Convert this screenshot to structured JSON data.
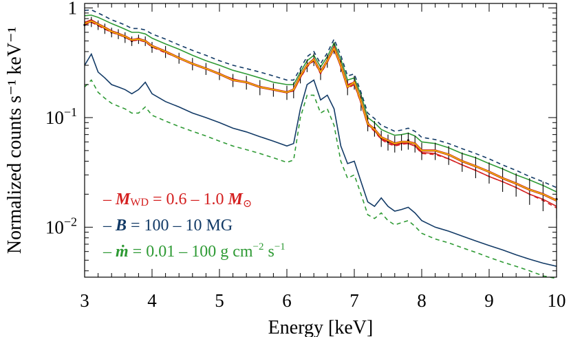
{
  "chart_data": {
    "type": "line",
    "title": "",
    "xlabel": "Energy [keV]",
    "ylabel": "Normalized counts s⁻¹ keV⁻¹",
    "xlim": [
      3,
      10
    ],
    "ylim": [
      0.0035,
      1.1
    ],
    "yscale": "log",
    "grid": false,
    "legend_position": "bottom-left",
    "x_ticks": [
      "3",
      "4",
      "5",
      "6",
      "7",
      "8",
      "9",
      "10"
    ],
    "y_tick_labels": [
      {
        "value": 1,
        "base": "1",
        "exp": ""
      },
      {
        "value": 0.1,
        "base": "10",
        "exp": "−1"
      },
      {
        "value": 0.01,
        "base": "10",
        "exp": "−2"
      }
    ],
    "legend": [
      {
        "id": "mass",
        "color": "#d42020",
        "dash": "–",
        "symbol": "M",
        "sub": "WD",
        "text": " = 0.6 – 1.0 ",
        "symbol2": "M",
        "sub2": "⊙",
        "sup": ""
      },
      {
        "id": "field",
        "color": "#123a66",
        "dash": "–",
        "symbol": "B",
        "sub": "",
        "text": " = 100 – 10 MG",
        "symbol2": "",
        "sub2": "",
        "sup": ""
      },
      {
        "id": "rate",
        "color": "#2e9a34",
        "dash": "–",
        "symbol": "ṁ",
        "sub": "",
        "text": " = 0.01 – 100 g cm",
        "sup": "−2",
        "text2": " s",
        "sup2": "−1"
      }
    ],
    "x": [
      3.0,
      3.1,
      3.2,
      3.3,
      3.4,
      3.5,
      3.6,
      3.7,
      3.8,
      3.9,
      4.0,
      4.2,
      4.4,
      4.6,
      4.8,
      5.0,
      5.2,
      5.4,
      5.6,
      5.8,
      6.0,
      6.1,
      6.2,
      6.3,
      6.4,
      6.5,
      6.6,
      6.7,
      6.8,
      6.9,
      7.0,
      7.1,
      7.2,
      7.3,
      7.4,
      7.5,
      7.6,
      7.7,
      7.8,
      7.9,
      8.0,
      8.2,
      8.4,
      8.6,
      8.8,
      9.0,
      9.2,
      9.4,
      9.6,
      9.8,
      10.0
    ],
    "series": [
      {
        "id": "data",
        "role": "observed",
        "color": "#000000",
        "values": [
          0.7,
          0.75,
          0.7,
          0.65,
          0.6,
          0.58,
          0.54,
          0.5,
          0.52,
          0.5,
          0.44,
          0.4,
          0.35,
          0.31,
          0.28,
          0.25,
          0.22,
          0.21,
          0.19,
          0.18,
          0.17,
          0.18,
          0.24,
          0.3,
          0.34,
          0.26,
          0.33,
          0.43,
          0.3,
          0.19,
          0.21,
          0.14,
          0.09,
          0.08,
          0.065,
          0.06,
          0.058,
          0.06,
          0.062,
          0.058,
          0.05,
          0.05,
          0.046,
          0.04,
          0.036,
          0.032,
          0.028,
          0.025,
          0.022,
          0.02,
          0.018
        ],
        "errors": [
          0.07,
          0.08,
          0.07,
          0.07,
          0.06,
          0.06,
          0.06,
          0.05,
          0.05,
          0.05,
          0.05,
          0.05,
          0.04,
          0.04,
          0.035,
          0.03,
          0.03,
          0.03,
          0.03,
          0.025,
          0.025,
          0.03,
          0.035,
          0.04,
          0.045,
          0.04,
          0.045,
          0.05,
          0.04,
          0.03,
          0.03,
          0.025,
          0.015,
          0.013,
          0.011,
          0.01,
          0.01,
          0.01,
          0.011,
          0.01,
          0.009,
          0.009,
          0.009,
          0.008,
          0.008,
          0.007,
          0.007,
          0.006,
          0.006,
          0.006,
          0.006
        ]
      },
      {
        "id": "best-fit",
        "role": "fit",
        "color": "#f2d200",
        "values": [
          0.72,
          0.76,
          0.71,
          0.66,
          0.61,
          0.58,
          0.55,
          0.51,
          0.52,
          0.5,
          0.45,
          0.4,
          0.35,
          0.31,
          0.28,
          0.25,
          0.22,
          0.21,
          0.19,
          0.18,
          0.17,
          0.18,
          0.24,
          0.3,
          0.34,
          0.26,
          0.33,
          0.43,
          0.3,
          0.19,
          0.21,
          0.14,
          0.088,
          0.078,
          0.066,
          0.062,
          0.058,
          0.06,
          0.06,
          0.058,
          0.05,
          0.05,
          0.046,
          0.04,
          0.036,
          0.032,
          0.028,
          0.025,
          0.022,
          0.02,
          0.0175
        ]
      },
      {
        "id": "mass-model",
        "role": "model",
        "color": "#d42020",
        "dash": "",
        "values": [
          0.74,
          0.78,
          0.72,
          0.67,
          0.62,
          0.59,
          0.55,
          0.51,
          0.53,
          0.5,
          0.45,
          0.4,
          0.355,
          0.31,
          0.28,
          0.25,
          0.225,
          0.21,
          0.19,
          0.18,
          0.17,
          0.175,
          0.23,
          0.3,
          0.345,
          0.26,
          0.33,
          0.45,
          0.31,
          0.2,
          0.21,
          0.14,
          0.087,
          0.076,
          0.064,
          0.06,
          0.056,
          0.058,
          0.058,
          0.055,
          0.048,
          0.047,
          0.042,
          0.037,
          0.033,
          0.029,
          0.026,
          0.023,
          0.02,
          0.018,
          0.0155
        ]
      },
      {
        "id": "mass-model-alt",
        "role": "model",
        "color": "#d42020",
        "dash": "6 5",
        "values": [
          0.7,
          0.74,
          0.69,
          0.64,
          0.6,
          0.57,
          0.54,
          0.5,
          0.51,
          0.49,
          0.44,
          0.39,
          0.35,
          0.31,
          0.28,
          0.25,
          0.22,
          0.21,
          0.19,
          0.18,
          0.17,
          0.175,
          0.23,
          0.29,
          0.33,
          0.25,
          0.32,
          0.42,
          0.29,
          0.185,
          0.2,
          0.135,
          0.085,
          0.075,
          0.063,
          0.058,
          0.055,
          0.057,
          0.058,
          0.055,
          0.047,
          0.046,
          0.042,
          0.037,
          0.033,
          0.029,
          0.026,
          0.023,
          0.02,
          0.0175,
          0.015
        ]
      },
      {
        "id": "rate-model-upper",
        "role": "model",
        "color": "#2e9a34",
        "dash": "",
        "values": [
          0.85,
          0.86,
          0.82,
          0.77,
          0.72,
          0.68,
          0.64,
          0.6,
          0.6,
          0.58,
          0.53,
          0.47,
          0.42,
          0.37,
          0.33,
          0.3,
          0.27,
          0.25,
          0.23,
          0.21,
          0.2,
          0.2,
          0.26,
          0.33,
          0.37,
          0.29,
          0.36,
          0.48,
          0.34,
          0.22,
          0.23,
          0.16,
          0.1,
          0.09,
          0.078,
          0.073,
          0.069,
          0.07,
          0.072,
          0.068,
          0.06,
          0.058,
          0.053,
          0.047,
          0.043,
          0.038,
          0.034,
          0.03,
          0.027,
          0.024,
          0.021
        ]
      },
      {
        "id": "field-model-upper",
        "role": "model",
        "color": "#123a66",
        "dash": "6 5",
        "values": [
          0.95,
          0.96,
          0.9,
          0.84,
          0.78,
          0.74,
          0.7,
          0.65,
          0.65,
          0.63,
          0.58,
          0.52,
          0.46,
          0.41,
          0.37,
          0.33,
          0.3,
          0.28,
          0.26,
          0.24,
          0.22,
          0.22,
          0.28,
          0.36,
          0.4,
          0.31,
          0.39,
          0.52,
          0.37,
          0.24,
          0.25,
          0.17,
          0.11,
          0.098,
          0.085,
          0.08,
          0.075,
          0.077,
          0.08,
          0.075,
          0.066,
          0.063,
          0.058,
          0.052,
          0.047,
          0.042,
          0.037,
          0.033,
          0.029,
          0.026,
          0.023
        ]
      },
      {
        "id": "field-model-lower",
        "role": "model",
        "color": "#123a66",
        "dash": "",
        "values": [
          0.3,
          0.38,
          0.26,
          0.23,
          0.2,
          0.19,
          0.18,
          0.165,
          0.18,
          0.21,
          0.165,
          0.14,
          0.125,
          0.11,
          0.1,
          0.09,
          0.08,
          0.074,
          0.067,
          0.061,
          0.055,
          0.058,
          0.12,
          0.2,
          0.22,
          0.145,
          0.16,
          0.12,
          0.055,
          0.038,
          0.04,
          0.026,
          0.017,
          0.0155,
          0.0185,
          0.0155,
          0.014,
          0.0145,
          0.0152,
          0.0135,
          0.0115,
          0.01,
          0.0092,
          0.0083,
          0.0075,
          0.0068,
          0.0062,
          0.0056,
          0.0051,
          0.0047,
          0.0044
        ]
      },
      {
        "id": "rate-model-lower",
        "role": "model",
        "color": "#2e9a34",
        "dash": "6 5",
        "values": [
          0.19,
          0.22,
          0.17,
          0.15,
          0.135,
          0.127,
          0.12,
          0.11,
          0.11,
          0.125,
          0.105,
          0.093,
          0.083,
          0.075,
          0.068,
          0.061,
          0.055,
          0.051,
          0.047,
          0.043,
          0.039,
          0.041,
          0.1,
          0.16,
          0.16,
          0.11,
          0.12,
          0.085,
          0.04,
          0.028,
          0.03,
          0.02,
          0.013,
          0.012,
          0.0135,
          0.0115,
          0.0105,
          0.011,
          0.0115,
          0.0102,
          0.0088,
          0.0078,
          0.0072,
          0.0065,
          0.0059,
          0.0053,
          0.0048,
          0.0044,
          0.004,
          0.0036,
          0.0034
        ]
      }
    ]
  }
}
